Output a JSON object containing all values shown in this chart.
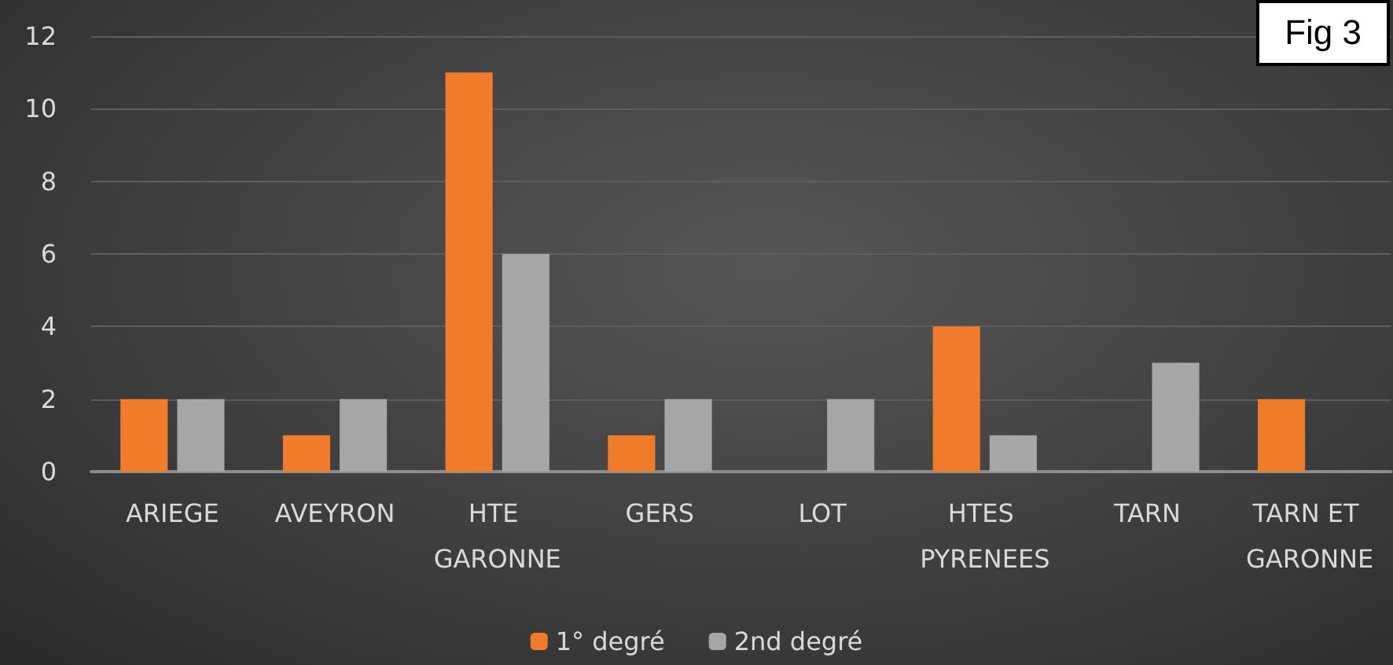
{
  "chart_data": {
    "type": "bar",
    "categories": [
      "ARIEGE",
      "AVEYRON",
      "HTE GARONNE",
      "GERS",
      "LOT",
      "HTES PYRENEES",
      "TARN",
      "TARN ET GARONNE"
    ],
    "series": [
      {
        "name": "1° degré",
        "color": "#f07b2a",
        "values": [
          2,
          1,
          11,
          1,
          0,
          4,
          0,
          2
        ]
      },
      {
        "name": "2nd degré",
        "color": "#a6a6a6",
        "values": [
          2,
          2,
          6,
          2,
          2,
          1,
          3,
          0
        ]
      }
    ],
    "ylim": [
      0,
      12
    ],
    "yticks": [
      0,
      2,
      4,
      6,
      8,
      10,
      12
    ],
    "grid": "y",
    "legend": "bottom",
    "annotations": [
      "Fig 3"
    ]
  }
}
